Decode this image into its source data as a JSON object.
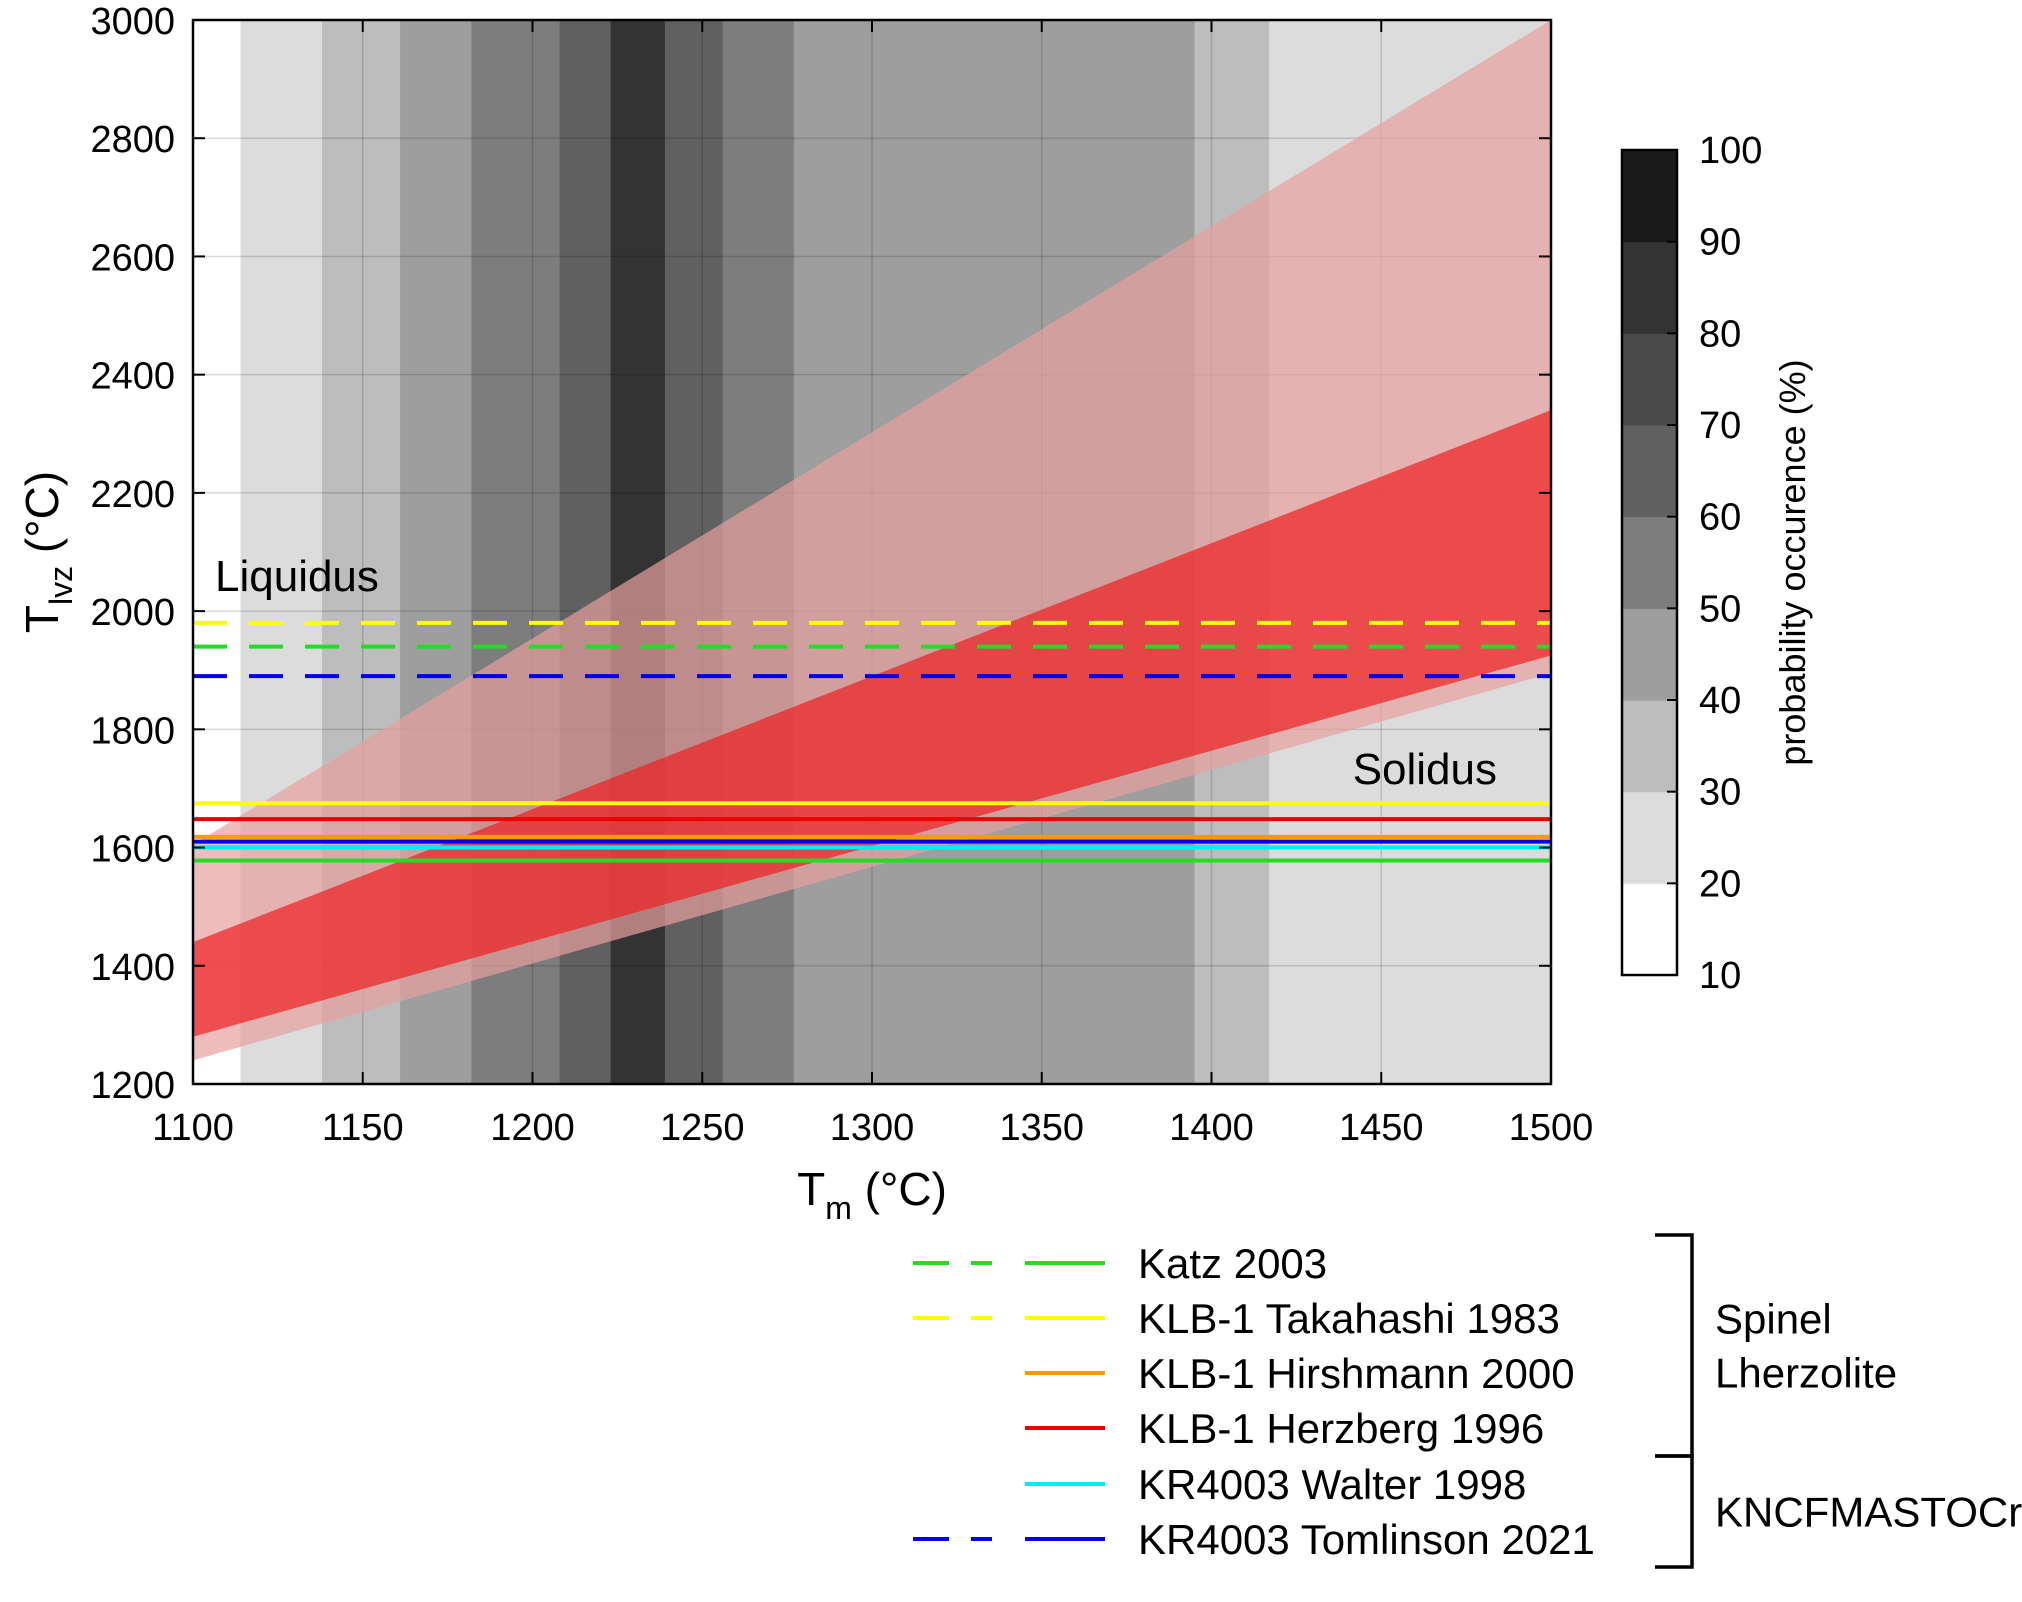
{
  "chart_data": {
    "type": "area",
    "title": "",
    "xlabel": {
      "main": "T",
      "sub": "m",
      "unit": " (°C)"
    },
    "ylabel": {
      "main": "T",
      "sub": "lvz",
      "unit": " (°C)"
    },
    "xlim": [
      1100,
      1500
    ],
    "ylim": [
      1200,
      3000
    ],
    "xticks": [
      "1100",
      "1150",
      "1200",
      "1250",
      "1300",
      "1350",
      "1400",
      "1450",
      "1500"
    ],
    "yticks": [
      "1200",
      "1400",
      "1600",
      "1800",
      "2000",
      "2200",
      "2400",
      "2600",
      "2800",
      "3000"
    ],
    "grid": true,
    "probability_bands": [
      {
        "x0": 1100,
        "x1": 1114,
        "probability": 10
      },
      {
        "x0": 1114,
        "x1": 1138,
        "probability": 20
      },
      {
        "x0": 1138,
        "x1": 1161,
        "probability": 30
      },
      {
        "x0": 1161,
        "x1": 1182,
        "probability": 40
      },
      {
        "x0": 1182,
        "x1": 1208,
        "probability": 50
      },
      {
        "x0": 1208,
        "x1": 1223,
        "probability": 60
      },
      {
        "x0": 1223,
        "x1": 1239,
        "probability": 80
      },
      {
        "x0": 1239,
        "x1": 1256,
        "probability": 60
      },
      {
        "x0": 1256,
        "x1": 1277,
        "probability": 50
      },
      {
        "x0": 1277,
        "x1": 1395,
        "probability": 40
      },
      {
        "x0": 1395,
        "x1": 1417,
        "probability": 30
      },
      {
        "x0": 1417,
        "x1": 1500,
        "probability": 20
      }
    ],
    "regions": [
      {
        "lower": [
          [
            1100,
            1240
          ],
          [
            1500,
            1895
          ]
        ],
        "upper": [
          [
            1100,
            1605
          ],
          [
            1500,
            3000
          ]
        ],
        "color": "#e8a0a0",
        "opacity": 0.7
      },
      {
        "lower": [
          [
            1100,
            1280
          ],
          [
            1500,
            1925
          ]
        ],
        "upper": [
          [
            1100,
            1440
          ],
          [
            1500,
            2340
          ]
        ],
        "color": "#ee2020",
        "opacity": 0.7
      }
    ],
    "lines": [
      {
        "name": "Katz 2003",
        "type": "liquidus",
        "y": 1940,
        "color": "#22dd22",
        "dash": true
      },
      {
        "name": "KLB-1 Takahashi 1983",
        "type": "liquidus",
        "y": 1980,
        "color": "#ffff00",
        "dash": true
      },
      {
        "name": "KR4003 Tomlinson 2021",
        "type": "liquidus",
        "y": 1890,
        "color": "#0000ee",
        "dash": true
      },
      {
        "name": "KLB-1 Takahashi 1983",
        "type": "solidus",
        "y": 1675,
        "color": "#ffff00",
        "dash": false
      },
      {
        "name": "KLB-1 Herzberg 1996",
        "type": "solidus",
        "y": 1648,
        "color": "#ee0000",
        "dash": false
      },
      {
        "name": "KLB-1 Hirshmann 2000",
        "type": "solidus",
        "y": 1618,
        "color": "#ff9900",
        "dash": false
      },
      {
        "name": "KR4003 Tomlinson 2021",
        "type": "solidus",
        "y": 1610,
        "color": "#0000ee",
        "dash": false
      },
      {
        "name": "KR4003 Walter 1998",
        "type": "solidus",
        "y": 1600,
        "color": "#00eeee",
        "dash": false
      },
      {
        "name": "Katz 2003",
        "type": "solidus",
        "y": 1578,
        "color": "#22dd22",
        "dash": false
      }
    ],
    "annotations": {
      "liquidus": "Liquidus",
      "solidus": "Solidus"
    },
    "colorbar": {
      "label": "probability occurence (%)",
      "ticks": [
        "10",
        "20",
        "30",
        "40",
        "50",
        "60",
        "70",
        "80",
        "90",
        "100"
      ],
      "colors": [
        "#ffffff",
        "#dcdcdc",
        "#bdbdbd",
        "#9e9e9e",
        "#7d7d7d",
        "#606060",
        "#4a4a4a",
        "#333333",
        "#1a1a1a"
      ]
    },
    "legend": {
      "entries": [
        {
          "label": "Katz 2003",
          "color": "#22dd22",
          "dashed": true,
          "solid": true
        },
        {
          "label": "KLB-1 Takahashi 1983",
          "color": "#ffff00",
          "dashed": true,
          "solid": true
        },
        {
          "label": "KLB-1 Hirshmann 2000",
          "color": "#ff9900",
          "dashed": false,
          "solid": true
        },
        {
          "label": "KLB-1 Herzberg 1996",
          "color": "#ee0000",
          "dashed": false,
          "solid": true
        },
        {
          "label": "KR4003 Walter 1998",
          "color": "#00eeee",
          "dashed": false,
          "solid": true
        },
        {
          "label": "KR4003 Tomlinson 2021",
          "color": "#0000ee",
          "dashed": true,
          "solid": true
        }
      ],
      "groups": [
        {
          "label_lines": [
            "Spinel",
            "Lherzolite"
          ],
          "first": 0,
          "last": 3
        },
        {
          "label_lines": [
            "KNCFMASTOCr"
          ],
          "first": 4,
          "last": 5
        }
      ]
    }
  }
}
